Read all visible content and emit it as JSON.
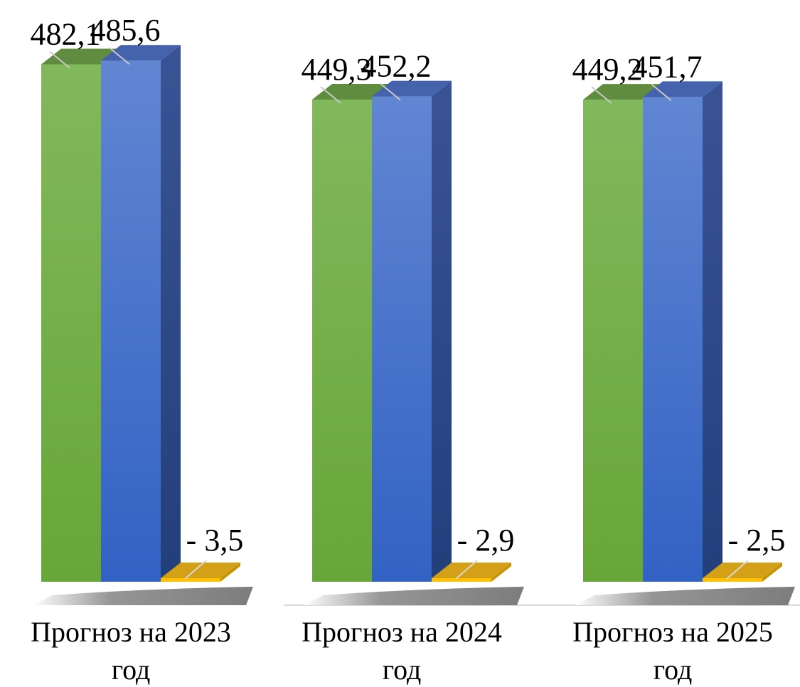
{
  "chart_data": {
    "type": "bar",
    "style": "3d-clustered-column",
    "categories": [
      "Прогноз на 2023 год",
      "Прогноз на 2024 год",
      "Прогноз на 2025 год"
    ],
    "category_label_lines": [
      [
        "Прогноз на 2023",
        "год"
      ],
      [
        "Прогноз на 2024",
        "год"
      ],
      [
        "Прогноз на 2025",
        "год"
      ]
    ],
    "series": [
      {
        "values": [
          482.1,
          449.3,
          449.2
        ],
        "labels": [
          "482,1",
          "449,3",
          "449,2"
        ],
        "color": "#70ad47"
      },
      {
        "values": [
          485.6,
          452.2,
          451.7
        ],
        "labels": [
          "485,6",
          "452,2",
          "451,7"
        ],
        "color": "#4472c4"
      },
      {
        "values": [
          -3.5,
          -2.9,
          -2.5
        ],
        "labels": [
          "- 3,5",
          "- 2,9",
          "- 2,5"
        ],
        "color": "#ffc000"
      }
    ],
    "title": "",
    "xlabel": "",
    "ylabel": "",
    "ylim": [
      -3.5,
      485.6
    ],
    "grid": false,
    "legend": "none",
    "data_labels": true
  }
}
